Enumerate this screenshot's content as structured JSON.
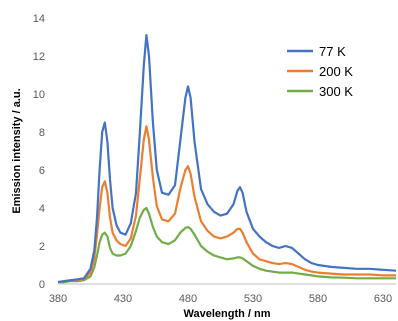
{
  "chart_data": {
    "type": "line",
    "xlabel": "Wavelength / nm",
    "ylabel": "Emission intensity / a.u.",
    "xlim": [
      380,
      640
    ],
    "ylim": [
      0,
      14
    ],
    "xticks": [
      380,
      430,
      480,
      530,
      580,
      630
    ],
    "yticks": [
      0,
      2,
      4,
      6,
      8,
      10,
      12,
      14
    ],
    "grid": false,
    "legend_position": "top-right",
    "series": [
      {
        "name": "77 K",
        "color": "#4472C4",
        "x": [
          380,
          385,
          390,
          395,
          400,
          405,
          408,
          410,
          412,
          414,
          416,
          418,
          420,
          422,
          425,
          428,
          432,
          436,
          440,
          443,
          446,
          448,
          450,
          453,
          456,
          460,
          465,
          470,
          474,
          478,
          480,
          482,
          485,
          490,
          495,
          500,
          505,
          510,
          515,
          518,
          520,
          522,
          525,
          530,
          535,
          540,
          545,
          550,
          555,
          560,
          565,
          570,
          575,
          580,
          590,
          600,
          610,
          620,
          630,
          640
        ],
        "y": [
          0.1,
          0.15,
          0.2,
          0.25,
          0.3,
          0.8,
          1.8,
          3.5,
          6.0,
          8.0,
          8.5,
          7.5,
          5.5,
          4.0,
          3.1,
          2.7,
          2.6,
          3.2,
          4.8,
          8.0,
          11.5,
          13.1,
          12.0,
          8.5,
          6.0,
          4.8,
          4.7,
          5.2,
          7.5,
          9.8,
          10.4,
          9.8,
          7.5,
          5.0,
          4.2,
          3.8,
          3.6,
          3.7,
          4.2,
          4.9,
          5.1,
          4.8,
          3.8,
          2.9,
          2.5,
          2.2,
          2.0,
          1.9,
          2.0,
          1.9,
          1.6,
          1.3,
          1.1,
          1.0,
          0.9,
          0.85,
          0.8,
          0.8,
          0.75,
          0.7
        ]
      },
      {
        "name": "200 K",
        "color": "#ED7D31",
        "x": [
          380,
          385,
          390,
          395,
          400,
          405,
          408,
          410,
          412,
          414,
          416,
          418,
          420,
          422,
          425,
          428,
          432,
          436,
          440,
          443,
          446,
          448,
          450,
          453,
          456,
          460,
          465,
          470,
          474,
          478,
          480,
          482,
          485,
          490,
          495,
          500,
          505,
          510,
          515,
          518,
          520,
          522,
          525,
          530,
          535,
          540,
          545,
          550,
          555,
          560,
          565,
          570,
          575,
          580,
          590,
          600,
          610,
          620,
          630,
          640
        ],
        "y": [
          0.1,
          0.15,
          0.2,
          0.2,
          0.25,
          0.6,
          1.4,
          2.6,
          4.0,
          5.1,
          5.4,
          4.8,
          3.5,
          2.7,
          2.3,
          2.1,
          2.0,
          2.4,
          3.6,
          5.6,
          7.6,
          8.3,
          7.6,
          5.6,
          4.1,
          3.4,
          3.3,
          3.7,
          5.0,
          6.0,
          6.2,
          5.8,
          4.6,
          3.3,
          2.8,
          2.5,
          2.4,
          2.5,
          2.7,
          2.9,
          2.9,
          2.7,
          2.2,
          1.6,
          1.3,
          1.2,
          1.1,
          1.05,
          1.1,
          1.05,
          0.9,
          0.75,
          0.65,
          0.6,
          0.55,
          0.5,
          0.5,
          0.5,
          0.45,
          0.45
        ]
      },
      {
        "name": "300 K",
        "color": "#70AD47",
        "x": [
          380,
          385,
          390,
          395,
          400,
          405,
          408,
          410,
          412,
          414,
          416,
          418,
          420,
          422,
          425,
          428,
          432,
          436,
          440,
          443,
          446,
          448,
          450,
          453,
          456,
          460,
          465,
          470,
          474,
          478,
          480,
          482,
          485,
          490,
          495,
          500,
          505,
          510,
          515,
          518,
          520,
          522,
          525,
          530,
          535,
          540,
          545,
          550,
          555,
          560,
          565,
          570,
          575,
          580,
          590,
          600,
          610,
          620,
          630,
          640
        ],
        "y": [
          0.1,
          0.1,
          0.15,
          0.15,
          0.2,
          0.4,
          0.9,
          1.5,
          2.2,
          2.6,
          2.7,
          2.5,
          1.9,
          1.6,
          1.5,
          1.5,
          1.6,
          2.0,
          2.8,
          3.5,
          3.9,
          4.0,
          3.7,
          3.0,
          2.5,
          2.2,
          2.1,
          2.3,
          2.7,
          2.95,
          3.0,
          2.9,
          2.6,
          2.0,
          1.7,
          1.5,
          1.4,
          1.3,
          1.35,
          1.4,
          1.4,
          1.35,
          1.2,
          0.95,
          0.8,
          0.7,
          0.65,
          0.6,
          0.6,
          0.6,
          0.55,
          0.5,
          0.45,
          0.4,
          0.35,
          0.33,
          0.3,
          0.3,
          0.3,
          0.3
        ]
      }
    ]
  }
}
